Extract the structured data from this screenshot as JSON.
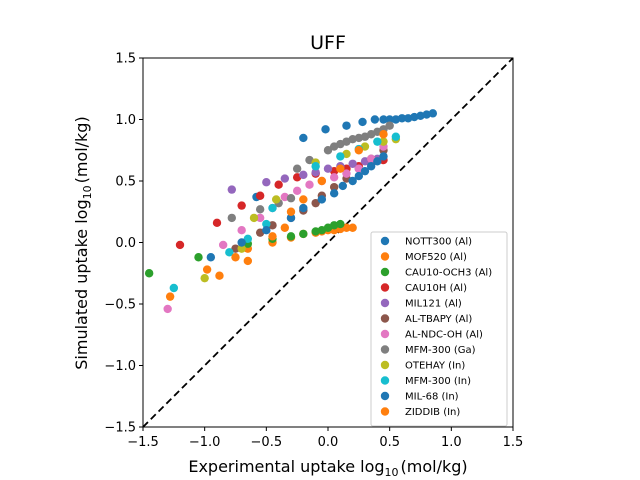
{
  "chart_data": {
    "type": "scatter",
    "title": "UFF",
    "xlabel_prefix": "Experimental uptake log",
    "ylabel_prefix": "Simulated uptake log",
    "label_sub": "10",
    "label_unit": "(mol/kg)",
    "xlim": [
      -1.5,
      1.5
    ],
    "ylim": [
      -1.5,
      1.5
    ],
    "xticks": [
      "-1.5",
      "-1.0",
      "-0.5",
      "0.0",
      "0.5",
      "1.0",
      "1.5"
    ],
    "yticks": [
      "-1.5",
      "-1.0",
      "-0.5",
      "0.0",
      "0.5",
      "1.0",
      "1.5"
    ],
    "grid": false,
    "legend_position": "lower-right",
    "reference_line": {
      "style": "dashed",
      "color": "#000000",
      "x": [
        -1.5,
        1.5
      ],
      "y": [
        -1.5,
        1.5
      ]
    },
    "series": [
      {
        "name": "NOTT300 (Al)",
        "color": "#1f77b4",
        "points": [
          [
            -0.58,
            0.37
          ],
          [
            -0.2,
            0.85
          ],
          [
            -0.02,
            0.92
          ],
          [
            0.15,
            0.95
          ],
          [
            0.28,
            0.98
          ],
          [
            0.38,
            1.0
          ],
          [
            0.45,
            1.0
          ],
          [
            0.5,
            1.0
          ],
          [
            0.55,
            1.0
          ],
          [
            0.6,
            1.01
          ],
          [
            0.65,
            1.01
          ],
          [
            0.7,
            1.02
          ],
          [
            0.75,
            1.03
          ],
          [
            0.8,
            1.04
          ],
          [
            0.85,
            1.05
          ]
        ]
      },
      {
        "name": "MOF520 (Al)",
        "color": "#ff7f0e",
        "points": [
          [
            -0.65,
            -0.05
          ],
          [
            -0.45,
            0.0
          ],
          [
            -0.3,
            0.04
          ],
          [
            -0.2,
            0.07
          ],
          [
            -0.1,
            0.08
          ],
          [
            -0.05,
            0.09
          ],
          [
            0.0,
            0.1
          ],
          [
            0.05,
            0.1
          ],
          [
            0.1,
            0.11
          ],
          [
            0.15,
            0.12
          ],
          [
            0.2,
            0.12
          ]
        ]
      },
      {
        "name": "CAU10-OCH3 (Al)",
        "color": "#2ca02c",
        "points": [
          [
            -1.45,
            -0.25
          ],
          [
            -1.05,
            -0.12
          ],
          [
            -0.65,
            -0.01
          ],
          [
            -0.45,
            0.03
          ],
          [
            -0.3,
            0.05
          ],
          [
            -0.2,
            0.07
          ],
          [
            -0.1,
            0.09
          ],
          [
            -0.05,
            0.1
          ],
          [
            0.0,
            0.12
          ],
          [
            0.05,
            0.14
          ],
          [
            0.1,
            0.15
          ]
        ]
      },
      {
        "name": "CAU10H (Al)",
        "color": "#d62728",
        "points": [
          [
            -1.2,
            -0.02
          ],
          [
            -0.9,
            0.16
          ],
          [
            -0.7,
            0.3
          ],
          [
            -0.55,
            0.38
          ],
          [
            -0.4,
            0.47
          ],
          [
            -0.25,
            0.53
          ],
          [
            -0.1,
            0.56
          ],
          [
            0.05,
            0.58
          ],
          [
            0.15,
            0.6
          ],
          [
            0.25,
            0.62
          ],
          [
            0.35,
            0.64
          ],
          [
            0.45,
            0.67
          ]
        ]
      },
      {
        "name": "MIL121 (Al)",
        "color": "#9467bd",
        "points": [
          [
            -0.78,
            0.43
          ],
          [
            -0.5,
            0.49
          ],
          [
            -0.35,
            0.52
          ],
          [
            -0.2,
            0.55
          ],
          [
            -0.1,
            0.57
          ],
          [
            0.0,
            0.6
          ],
          [
            0.1,
            0.62
          ],
          [
            0.2,
            0.64
          ],
          [
            0.3,
            0.66
          ],
          [
            0.4,
            0.68
          ]
        ]
      },
      {
        "name": "AL-TBAPY (Al)",
        "color": "#8c564b",
        "points": [
          [
            -0.75,
            -0.05
          ],
          [
            -0.55,
            0.08
          ],
          [
            -0.45,
            0.14
          ],
          [
            -0.3,
            0.2
          ],
          [
            -0.2,
            0.26
          ],
          [
            -0.1,
            0.32
          ],
          [
            -0.05,
            0.38
          ],
          [
            0.05,
            0.45
          ],
          [
            0.15,
            0.52
          ],
          [
            0.25,
            0.6
          ],
          [
            0.35,
            0.68
          ],
          [
            0.45,
            0.75
          ]
        ]
      },
      {
        "name": "AL-NDC-OH (Al)",
        "color": "#e377c2",
        "points": [
          [
            -1.3,
            -0.54
          ],
          [
            -0.85,
            -0.02
          ],
          [
            -0.7,
            0.1
          ],
          [
            -0.55,
            0.2
          ],
          [
            -0.45,
            0.28
          ],
          [
            -0.35,
            0.37
          ],
          [
            -0.25,
            0.42
          ],
          [
            -0.15,
            0.47
          ],
          [
            -0.05,
            0.5
          ],
          [
            0.05,
            0.53
          ],
          [
            0.15,
            0.56
          ],
          [
            0.25,
            0.6
          ],
          [
            0.35,
            0.68
          ],
          [
            0.45,
            0.78
          ]
        ]
      },
      {
        "name": "MFM-300 (Ga)",
        "color": "#7f7f7f",
        "points": [
          [
            -0.78,
            0.2
          ],
          [
            -0.55,
            0.27
          ],
          [
            -0.4,
            0.32
          ],
          [
            -0.3,
            0.36
          ],
          [
            -0.25,
            0.6
          ],
          [
            -0.15,
            0.67
          ],
          [
            0.0,
            0.75
          ],
          [
            0.05,
            0.78
          ],
          [
            0.1,
            0.8
          ],
          [
            0.15,
            0.82
          ],
          [
            0.2,
            0.84
          ],
          [
            0.25,
            0.85
          ],
          [
            0.3,
            0.86
          ],
          [
            0.35,
            0.88
          ],
          [
            0.4,
            0.9
          ],
          [
            0.45,
            0.92
          ],
          [
            0.5,
            0.95
          ]
        ]
      },
      {
        "name": "OTEHAY (In)",
        "color": "#bcbd22",
        "points": [
          [
            -1.0,
            -0.29
          ],
          [
            -0.7,
            -0.05
          ],
          [
            -0.6,
            0.2
          ],
          [
            -0.42,
            0.35
          ],
          [
            -0.1,
            0.65
          ],
          [
            0.15,
            0.72
          ],
          [
            0.3,
            0.78
          ],
          [
            0.45,
            0.82
          ],
          [
            0.55,
            0.84
          ]
        ]
      },
      {
        "name": "MFM-300 (In)",
        "color": "#17becf",
        "points": [
          [
            -1.25,
            -0.37
          ],
          [
            -0.8,
            -0.08
          ],
          [
            -0.65,
            0.03
          ],
          [
            -0.5,
            0.15
          ],
          [
            -0.45,
            0.28
          ],
          [
            -0.1,
            0.62
          ],
          [
            0.1,
            0.7
          ],
          [
            0.25,
            0.76
          ],
          [
            0.4,
            0.82
          ],
          [
            0.55,
            0.86
          ]
        ]
      },
      {
        "name": "MIL-68 (In)",
        "color": "#1f77b4",
        "points": [
          [
            -0.95,
            -0.12
          ],
          [
            -0.7,
            0.0
          ],
          [
            -0.5,
            0.1
          ],
          [
            -0.3,
            0.2
          ],
          [
            -0.2,
            0.28
          ],
          [
            -0.05,
            0.35
          ],
          [
            0.05,
            0.4
          ],
          [
            0.12,
            0.46
          ],
          [
            0.2,
            0.5
          ],
          [
            0.25,
            0.54
          ],
          [
            0.3,
            0.58
          ],
          [
            0.35,
            0.62
          ],
          [
            0.4,
            0.66
          ],
          [
            0.45,
            0.7
          ]
        ]
      },
      {
        "name": "ZIDDIB (In)",
        "color": "#ff7f0e",
        "points": [
          [
            -1.28,
            -0.44
          ],
          [
            -0.98,
            -0.22
          ],
          [
            -0.88,
            -0.27
          ],
          [
            -0.75,
            -0.12
          ],
          [
            -0.65,
            -0.15
          ],
          [
            -0.45,
            0.05
          ],
          [
            -0.35,
            0.12
          ],
          [
            -0.3,
            0.25
          ],
          [
            -0.2,
            0.35
          ],
          [
            -0.05,
            0.5
          ],
          [
            0.1,
            0.6
          ],
          [
            0.25,
            0.75
          ],
          [
            0.45,
            0.88
          ]
        ]
      }
    ]
  }
}
